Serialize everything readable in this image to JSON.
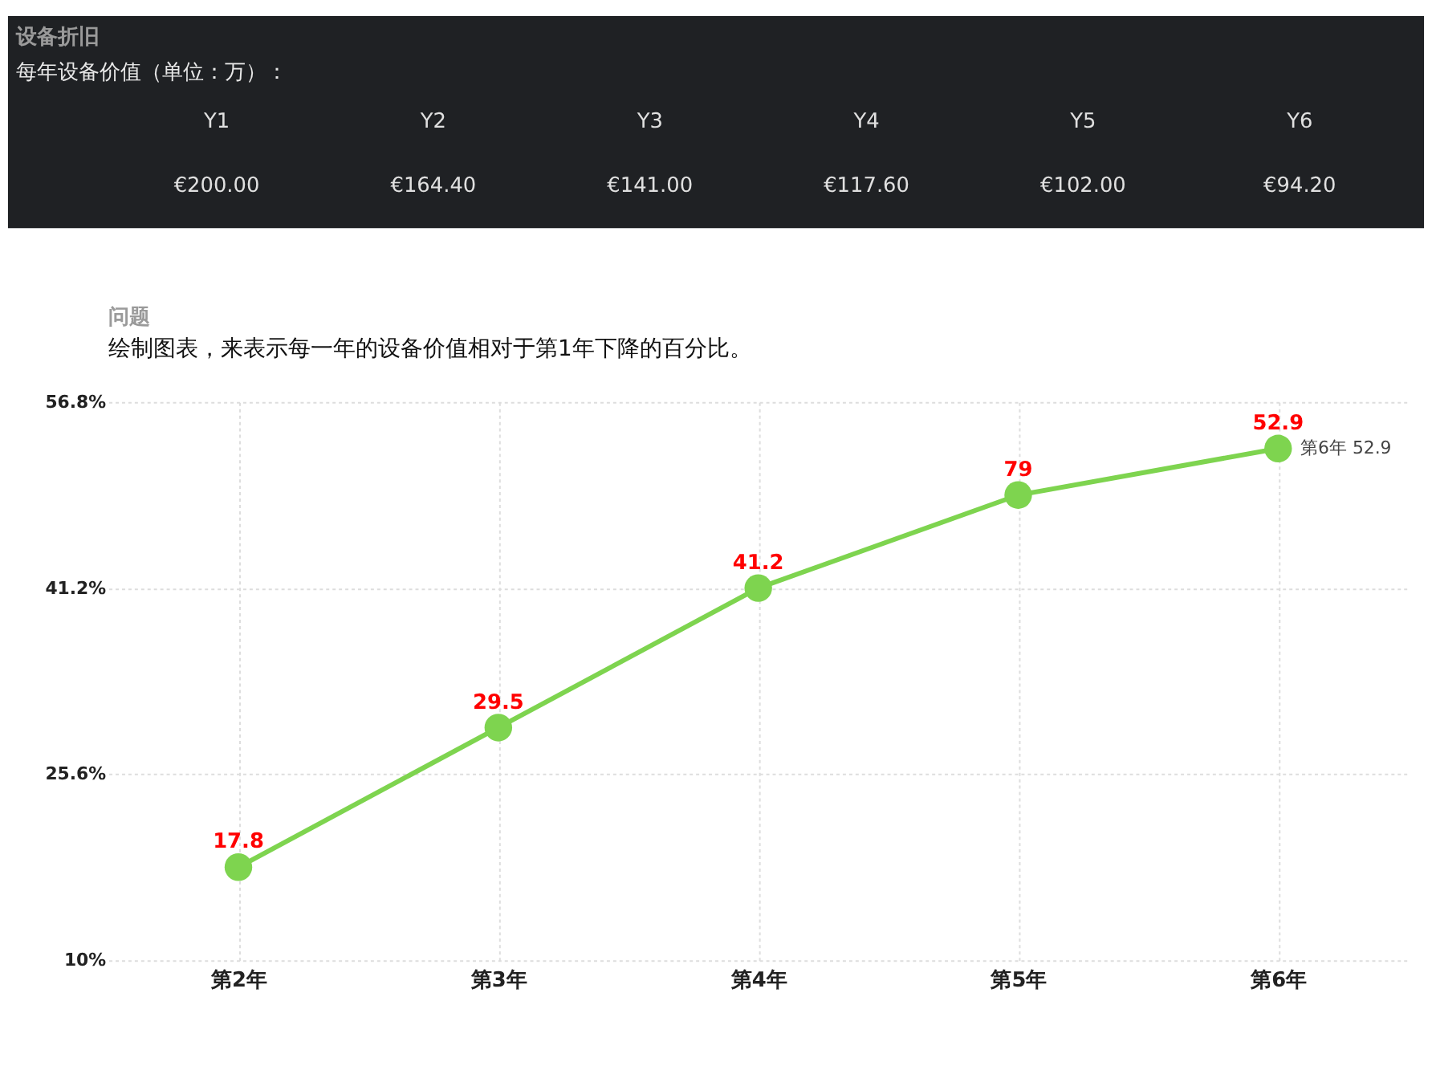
{
  "chart_data": [
    {
      "type": "other",
      "title": "设备折旧",
      "subtitle": "每年设备价值（单位：万）：",
      "categories": [
        "Y1",
        "Y2",
        "Y3",
        "Y4",
        "Y5",
        "Y6"
      ],
      "values": [
        200,
        164.4,
        141,
        117.6,
        102,
        94.2
      ],
      "value_labels": [
        "€200.00",
        "€164.40",
        "€141.00",
        "€117.60",
        "€102.00",
        "€94.20"
      ]
    },
    {
      "type": "line",
      "title": "问题",
      "subtitle": "绘制图表，来表示每一年的设备价值相对于第1年下降的百分比。",
      "categories": [
        "第2年",
        "第3年",
        "第4年",
        "第5年",
        "第6年"
      ],
      "series": [
        {
          "color": "#7ed44f",
          "values": [
            17.8,
            29.5,
            41.2,
            49.0,
            52.9
          ]
        }
      ],
      "value_labels": [
        "17.8",
        "29.5",
        "41.2",
        "79",
        "52.9"
      ],
      "ylim": [
        10,
        56.8
      ],
      "yticks": [
        {
          "value": 10,
          "label": "10%"
        },
        {
          "value": 25.6,
          "label": "25.6%"
        },
        {
          "value": 41.2,
          "label": "41.2%"
        },
        {
          "value": 56.8,
          "label": "56.8%"
        }
      ],
      "grid": true,
      "marker": "circle",
      "line_style": "solid",
      "annotations": [
        {
          "text": "第6年 52.9",
          "x": "第6年",
          "y": 52.9
        }
      ]
    }
  ]
}
